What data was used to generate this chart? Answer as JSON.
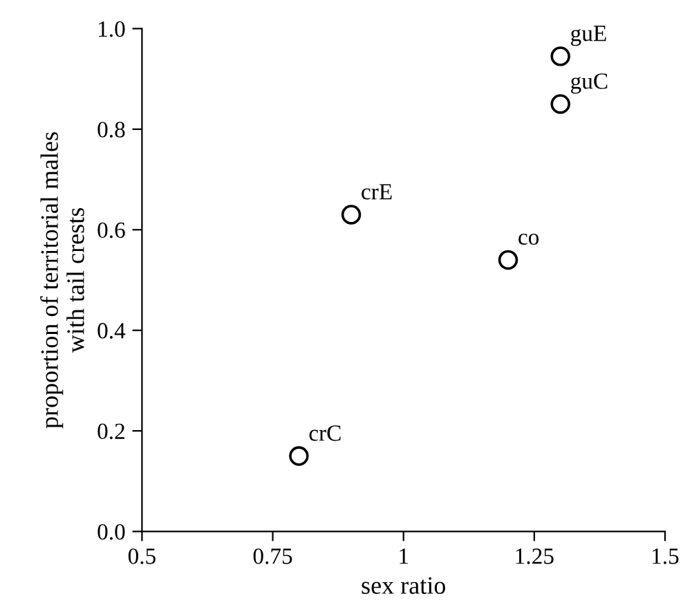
{
  "chart_data": {
    "type": "scatter",
    "xlabel": "sex ratio",
    "ylabel": "proportion of territorial males\nwith tail crests",
    "x": [
      0.8,
      0.9,
      1.2,
      1.3,
      1.3
    ],
    "values": [
      0.15,
      0.63,
      0.54,
      0.85,
      0.945
    ],
    "color": "#000000",
    "marker": "circle",
    "annotations": [
      {
        "text": "crC",
        "x": 0.8,
        "y": 0.15
      },
      {
        "text": "crE",
        "x": 0.9,
        "y": 0.63
      },
      {
        "text": "co",
        "x": 1.2,
        "y": 0.54
      },
      {
        "text": "guC",
        "x": 1.3,
        "y": 0.85
      },
      {
        "text": "guE",
        "x": 1.3,
        "y": 0.945
      }
    ],
    "xlim": [
      0.5,
      1.5
    ],
    "xticks": [
      0.5,
      {
        "value": 0.75,
        "label": "0.75"
      },
      1,
      {
        "value": 1.25,
        "label": "1.25"
      },
      1.5
    ],
    "ylim": [
      0,
      1
    ],
    "yticks": [
      {
        "value": 0,
        "label": "0.0"
      },
      0.2,
      0.4,
      0.6,
      0.8,
      {
        "value": 1,
        "label": "1.0"
      }
    ],
    "grid": false,
    "legend": false
  }
}
